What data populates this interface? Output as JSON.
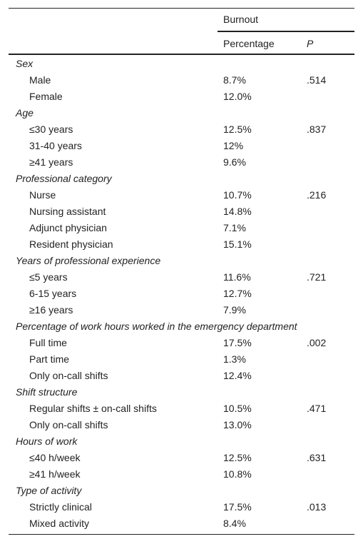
{
  "header": {
    "group": "Burnout",
    "columns": [
      "Percentage",
      "P"
    ]
  },
  "sections": [
    {
      "title": "Sex",
      "rows": [
        {
          "label": "Male",
          "percentage": "8.7%",
          "p": ".514"
        },
        {
          "label": "Female",
          "percentage": "12.0%"
        }
      ]
    },
    {
      "title": "Age",
      "rows": [
        {
          "label": "≤30 years",
          "percentage": "12.5%",
          "p": ".837"
        },
        {
          "label": "31-40 years",
          "percentage": "12%"
        },
        {
          "label": "≥41 years",
          "percentage": "9.6%"
        }
      ]
    },
    {
      "title": "Professional category",
      "rows": [
        {
          "label": "Nurse",
          "percentage": "10.7%",
          "p": ".216"
        },
        {
          "label": "Nursing assistant",
          "percentage": "14.8%"
        },
        {
          "label": "Adjunct physician",
          "percentage": "7.1%"
        },
        {
          "label": "Resident physician",
          "percentage": "15.1%"
        }
      ]
    },
    {
      "title": "Years of professional experience",
      "rows": [
        {
          "label": "≤5 years",
          "percentage": "11.6%",
          "p": ".721"
        },
        {
          "label": "6-15 years",
          "percentage": "12.7%"
        },
        {
          "label": "≥16 years",
          "percentage": "7.9%"
        }
      ]
    },
    {
      "title": "Percentage of work hours worked in the emergency department",
      "rows": [
        {
          "label": "Full time",
          "percentage": "17.5%",
          "p": ".002"
        },
        {
          "label": "Part time",
          "percentage": "1.3%"
        },
        {
          "label": "Only on-call shifts",
          "percentage": "12.4%"
        }
      ]
    },
    {
      "title": "Shift structure",
      "rows": [
        {
          "label": "Regular shifts ± on-call shifts",
          "percentage": "10.5%",
          "p": ".471"
        },
        {
          "label": "Only on-call shifts",
          "percentage": "13.0%"
        }
      ]
    },
    {
      "title": "Hours of work",
      "rows": [
        {
          "label": "≤40 h/week",
          "percentage": "12.5%",
          "p": ".631"
        },
        {
          "label": "≥41 h/week",
          "percentage": "10.8%"
        }
      ]
    },
    {
      "title": "Type of activity",
      "rows": [
        {
          "label": "Strictly clinical",
          "percentage": "17.5%",
          "p": ".013"
        },
        {
          "label": "Mixed activity",
          "percentage": "8.4%"
        }
      ]
    }
  ]
}
